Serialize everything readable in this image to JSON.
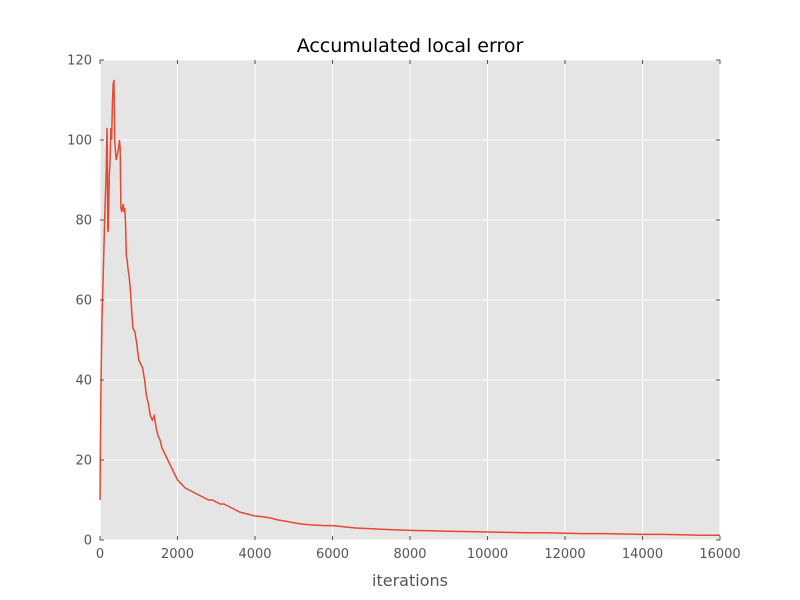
{
  "chart_data": {
    "type": "line",
    "title": "Accumulated local error",
    "xlabel": "iterations",
    "ylabel": "",
    "xlim": [
      0,
      16000
    ],
    "ylim": [
      0,
      120
    ],
    "xticks": [
      0,
      2000,
      4000,
      6000,
      8000,
      10000,
      12000,
      14000,
      16000
    ],
    "yticks": [
      0,
      20,
      40,
      60,
      80,
      100,
      120
    ],
    "grid": true,
    "background": "#e5e5e5",
    "grid_color": "#ffffff",
    "line_color": "#e24a33",
    "series": [
      {
        "name": "",
        "x": [
          0,
          20,
          50,
          80,
          120,
          160,
          180,
          190,
          200,
          210,
          240,
          260,
          280,
          300,
          320,
          340,
          360,
          380,
          400,
          420,
          440,
          460,
          480,
          500,
          520,
          540,
          560,
          580,
          600,
          620,
          640,
          660,
          680,
          700,
          720,
          750,
          780,
          800,
          820,
          850,
          900,
          950,
          1000,
          1050,
          1100,
          1150,
          1200,
          1250,
          1300,
          1350,
          1400,
          1450,
          1500,
          1550,
          1600,
          1650,
          1700,
          1800,
          1900,
          2000,
          2100,
          2200,
          2300,
          2400,
          2500,
          2600,
          2700,
          2800,
          2900,
          3000,
          3100,
          3200,
          3300,
          3400,
          3500,
          3600,
          3800,
          4000,
          4200,
          4400,
          4600,
          4800,
          5000,
          5200,
          5400,
          5600,
          5800,
          6000,
          6200,
          6400,
          6600,
          6800,
          7000,
          7500,
          8000,
          8500,
          9000,
          9500,
          10000,
          10500,
          11000,
          11500,
          12000,
          12500,
          13000,
          13500,
          14000,
          14500,
          15000,
          15500,
          16000
        ],
        "values": [
          10,
          35,
          55,
          65,
          80,
          92,
          103,
          97,
          78,
          77,
          91,
          95,
          103,
          100,
          109,
          114,
          115,
          100,
          97,
          95,
          96,
          97,
          98,
          100,
          98,
          83,
          82,
          83,
          84,
          82,
          83,
          79,
          71,
          70,
          68,
          66,
          63,
          60,
          57,
          53,
          52,
          49,
          45,
          44,
          43,
          40,
          36,
          34,
          31,
          30,
          31,
          28,
          26,
          25,
          23,
          22,
          21,
          19,
          17,
          15,
          14,
          13,
          12.5,
          12,
          11.5,
          11,
          10.5,
          10,
          10,
          9.5,
          9,
          9,
          8.5,
          8,
          7.5,
          7,
          6.5,
          6,
          5.8,
          5.5,
          5.0,
          4.7,
          4.3,
          4.0,
          3.8,
          3.7,
          3.6,
          3.6,
          3.4,
          3.2,
          3.0,
          2.9,
          2.8,
          2.6,
          2.4,
          2.3,
          2.2,
          2.1,
          2.0,
          1.9,
          1.8,
          1.8,
          1.7,
          1.6,
          1.6,
          1.5,
          1.4,
          1.4,
          1.3,
          1.2,
          1.2
        ]
      }
    ]
  }
}
